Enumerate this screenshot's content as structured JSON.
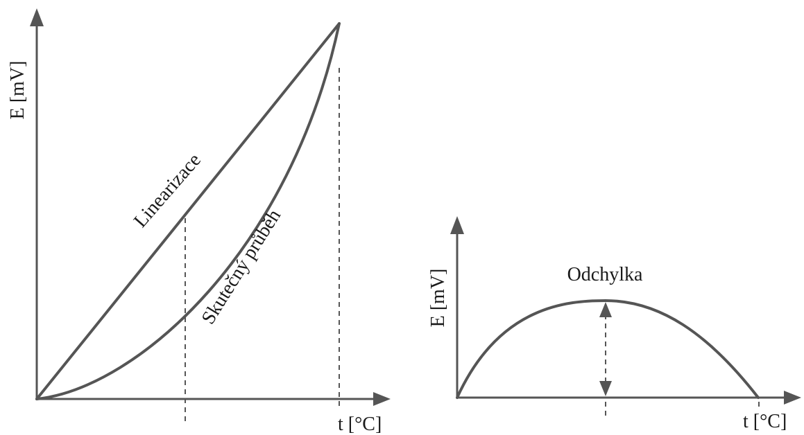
{
  "left_diagram": {
    "y_axis_label": "E [mV]",
    "x_axis_label": "t [°C]",
    "line_label": "Linearizace",
    "curve_label": "Skutečný průběh"
  },
  "right_diagram": {
    "y_axis_label": "E [mV]",
    "x_axis_label": "t [°C]",
    "peak_label": "Odchylka"
  }
}
